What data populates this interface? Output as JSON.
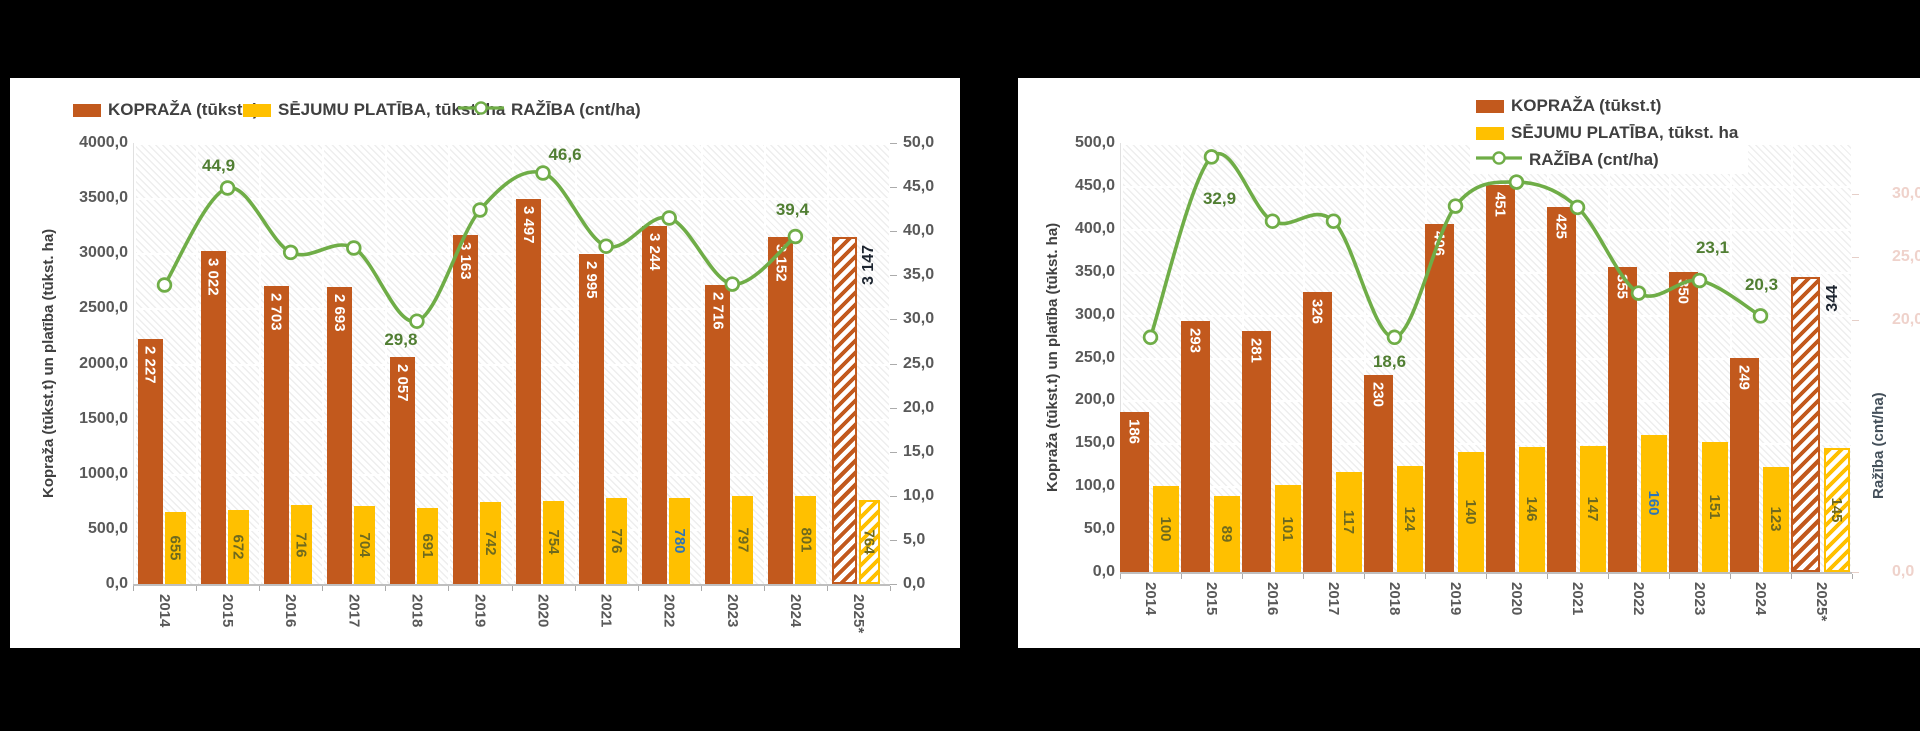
{
  "page": {
    "background": "#000000"
  },
  "chart_data": [
    {
      "id": "left-chart",
      "type": "bar+line",
      "categories": [
        "2014",
        "2015",
        "2016",
        "2017",
        "2018",
        "2019",
        "2020",
        "2021",
        "2022",
        "2023",
        "2024",
        "2025*"
      ],
      "legend_items": [
        {
          "label": "KOPRAŽA (tūkst.t)",
          "swatch": "bar",
          "color": "#C2591D"
        },
        {
          "label": "SĒJUMU PLATĪBA, tūkst. ha",
          "swatch": "bar",
          "color": "#FFC000"
        },
        {
          "label": "RAŽĪBA (cnt/ha)",
          "swatch": "line",
          "color": "#6FAD47"
        }
      ],
      "y_left": {
        "title": "Kopraža (tūkst.t) un platība (tūkst. ha)",
        "min": 0,
        "max": 4000,
        "step": 500,
        "tick_color": "#595959"
      },
      "y_right": {
        "title": "",
        "min": 0,
        "max": 50,
        "step": 5,
        "tick_color": "#595959",
        "ticks_shown": "all"
      },
      "grid": true,
      "series": [
        {
          "name": "KOPRAŽA (tūkst.t)",
          "type": "bar",
          "color": "#C2591D",
          "values": [
            2227,
            3022,
            2703,
            2693,
            2057,
            3163,
            3497,
            2995,
            3244,
            2716,
            3152,
            3147
          ],
          "data_labels": [
            "2 227",
            "3 022",
            "2 703",
            "2 693",
            "2 057",
            "3 163",
            "3 497",
            "2 995",
            "3 244",
            "2 716",
            "3 152",
            "3 147"
          ],
          "label_color": "#ffffff",
          "last_is_forecast": true,
          "forecast_label_color": "#1d2530"
        },
        {
          "name": "SĒJUMU PLATĪBA, tūkst. ha",
          "type": "bar",
          "color": "#FFC000",
          "values": [
            655,
            672,
            716,
            704,
            691,
            742,
            754,
            776,
            780,
            797,
            801,
            764
          ],
          "data_labels": [
            "655",
            "672",
            "716",
            "704",
            "691",
            "742",
            "754",
            "776",
            "780",
            "797",
            "801",
            "764"
          ],
          "label_color": "#6F6A1E",
          "label_color_overrides": {
            "8": "#2E75B6"
          },
          "last_is_forecast": true
        },
        {
          "name": "RAŽĪBA (cnt/ha)",
          "type": "line",
          "color": "#6FAD47",
          "values": [
            33.9,
            44.9,
            37.6,
            38.1,
            29.8,
            42.4,
            46.6,
            38.3,
            41.5,
            34.0,
            39.4
          ],
          "point_labels": {
            "1": "44,9",
            "4": "29,8",
            "6": "46,6",
            "10": "39,4"
          },
          "label_color": "#507E32"
        }
      ]
    },
    {
      "id": "right-chart",
      "type": "bar+line",
      "categories": [
        "2014",
        "2015",
        "2016",
        "2017",
        "2018",
        "2019",
        "2020",
        "2021",
        "2022",
        "2023",
        "2024",
        "2025*"
      ],
      "legend_items": [
        {
          "label": "KOPRAŽA (tūkst.t)",
          "swatch": "bar",
          "color": "#C2591D"
        },
        {
          "label": "SĒJUMU PLATĪBA, tūkst. ha",
          "swatch": "bar",
          "color": "#FFC000"
        },
        {
          "label": "RAŽĪBA (cnt/ha)",
          "swatch": "line",
          "color": "#6FAD47"
        }
      ],
      "y_left": {
        "title": "Kopraža (tūkst.t) un platība (tūkst. ha)",
        "min": 0,
        "max": 500,
        "step": 50,
        "tick_color": "#595959"
      },
      "y_right": {
        "title": "Ražība (cnt/ha)",
        "min": 0,
        "max": 34,
        "step": 5,
        "tick_color": "#EFD2CB",
        "ticks_shown": [
          30,
          25,
          20,
          0
        ]
      },
      "grid": true,
      "series": [
        {
          "name": "KOPRAŽA (tūkst.t)",
          "type": "bar",
          "color": "#C2591D",
          "values": [
            186,
            293,
            281,
            326,
            230,
            406,
            451,
            425,
            355,
            350,
            249,
            344
          ],
          "data_labels": [
            "186",
            "293",
            "281",
            "326",
            "230",
            "406",
            "451",
            "425",
            "355",
            "350",
            "249",
            "344"
          ],
          "label_color": "#ffffff",
          "last_is_forecast": true,
          "forecast_label_color": "#1d2530"
        },
        {
          "name": "SĒJUMU PLATĪBA, tūkst. ha",
          "type": "bar",
          "color": "#FFC000",
          "values": [
            100,
            89,
            101,
            117,
            124,
            140,
            146,
            147,
            160,
            151,
            123,
            145
          ],
          "data_labels": [
            "100",
            "89",
            "101",
            "117",
            "124",
            "140",
            "146",
            "147",
            "160",
            "151",
            "123",
            "145"
          ],
          "label_color": "#6F6A1E",
          "label_color_overrides": {
            "8": "#2E75B6"
          },
          "last_is_forecast": true
        },
        {
          "name": "RAŽĪBA (cnt/ha)",
          "type": "line",
          "color": "#6FAD47",
          "values": [
            18.6,
            32.9,
            27.8,
            27.8,
            18.6,
            29.0,
            30.9,
            28.9,
            22.1,
            23.1,
            20.3
          ],
          "point_labels": {
            "1": "32,9",
            "4": "18,6",
            "9": "23,1",
            "10": "20,3"
          },
          "label_color": "#507E32"
        }
      ]
    }
  ]
}
